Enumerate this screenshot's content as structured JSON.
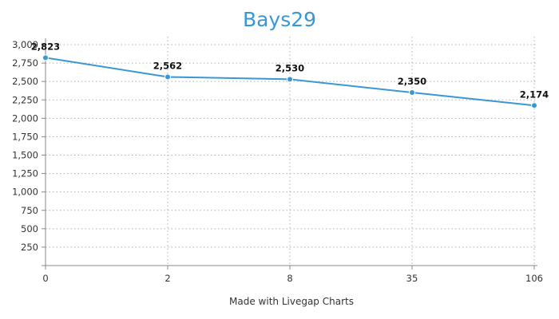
{
  "chart_data": {
    "type": "line",
    "title": "Bays29",
    "x_categories": [
      "0",
      "2",
      "8",
      "35",
      "106"
    ],
    "series": [
      {
        "values": [
          2823,
          2562,
          2530,
          2350,
          2174
        ],
        "data_labels": [
          "2,823",
          "2,562",
          "2,530",
          "2,350",
          "2,174"
        ]
      }
    ],
    "y_ticks": [
      "250",
      "500",
      "750",
      "1,000",
      "1,250",
      "1,500",
      "1,750",
      "2,000",
      "2,250",
      "2,500",
      "2,750",
      "3,000"
    ],
    "y_tick_values": [
      250,
      500,
      750,
      1000,
      1250,
      1500,
      1750,
      2000,
      2250,
      2500,
      2750,
      3000
    ],
    "ylim": [
      0,
      3000
    ],
    "xlabel": "",
    "ylabel": "",
    "grid": true,
    "colors": {
      "line": "#3a97d6",
      "title": "#3a97d6",
      "grid": "#b0b0b0",
      "axis": "#888888"
    }
  },
  "footer": "Made with Livegap Charts"
}
